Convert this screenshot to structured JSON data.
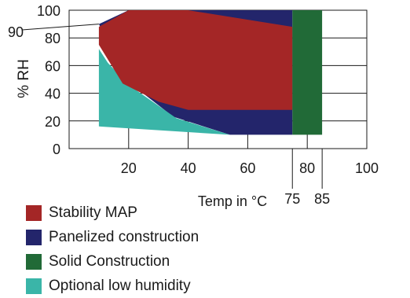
{
  "chart_data": {
    "type": "area",
    "xlabel": "Temp in °C",
    "ylabel": "% RH",
    "xlim": [
      0,
      100
    ],
    "ylim": [
      0,
      100
    ],
    "x_ticks": [
      20,
      40,
      60,
      80,
      100
    ],
    "y_ticks": [
      0,
      20,
      40,
      60,
      80,
      100
    ],
    "extra_x_labels": [
      75,
      85
    ],
    "extra_y_labels": [
      90
    ],
    "series": [
      {
        "name": "Panelized construction",
        "color": "#23256b",
        "points": [
          [
            10,
            90
          ],
          [
            20,
            100
          ],
          [
            75,
            100
          ],
          [
            75,
            10
          ],
          [
            54,
            10
          ],
          [
            35,
            23
          ],
          [
            20,
            48
          ],
          [
            10,
            90
          ]
        ]
      },
      {
        "name": "Optional low humidity",
        "color": "#3ab5a8",
        "points": [
          [
            10,
            72
          ],
          [
            13,
            62
          ],
          [
            17,
            53
          ],
          [
            20,
            46
          ],
          [
            36,
            22
          ],
          [
            54,
            10
          ],
          [
            10,
            16
          ]
        ]
      },
      {
        "name": "Stability MAP",
        "color": "#a42626",
        "points": [
          [
            10,
            88
          ],
          [
            20,
            100
          ],
          [
            40,
            100
          ],
          [
            75,
            88
          ],
          [
            75,
            28
          ],
          [
            40,
            28
          ],
          [
            30,
            34
          ],
          [
            18,
            47
          ],
          [
            10,
            75
          ]
        ]
      },
      {
        "name": "Solid Construction",
        "color": "#216a37",
        "points": [
          [
            75,
            100
          ],
          [
            85,
            100
          ],
          [
            85,
            10
          ],
          [
            75,
            10
          ]
        ]
      }
    ]
  },
  "legend": [
    {
      "label": "Stability MAP",
      "color": "#a42626"
    },
    {
      "label": "Panelized construction",
      "color": "#23256b"
    },
    {
      "label": "Solid Construction",
      "color": "#216a37"
    },
    {
      "label": "Optional low humidity",
      "color": "#3ab5a8"
    }
  ]
}
